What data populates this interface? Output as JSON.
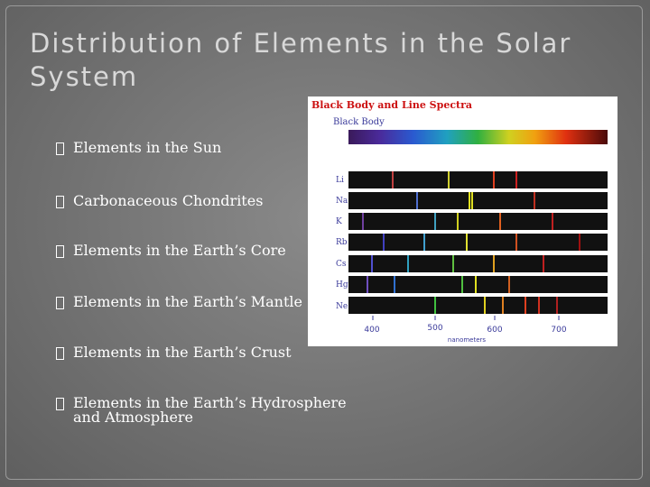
{
  "slide": {
    "title": "Distribution of Elements in the Solar System",
    "bullets": [
      "Elements in the Sun",
      "Carbonaceous Chondrites",
      "Elements in the Earth’s Core",
      "Elements in the Earth’s Mantle",
      "Elements in the Earth’s Crust",
      "Elements in the Earth’s Hydrosphere and Atmosphere"
    ]
  },
  "figure": {
    "title": "Black Body and Line Spectra",
    "blackbody_label": "Black Body",
    "elements": [
      "Li",
      "Na",
      "K",
      "Rb",
      "Cs",
      "Hg",
      "Ne"
    ],
    "x_ticks": [
      "400",
      "500",
      "600",
      "700"
    ],
    "x_label": "nanometers",
    "colors": {
      "title": "#cc1111",
      "label": "#3a3a9a",
      "band": "#111111"
    }
  }
}
